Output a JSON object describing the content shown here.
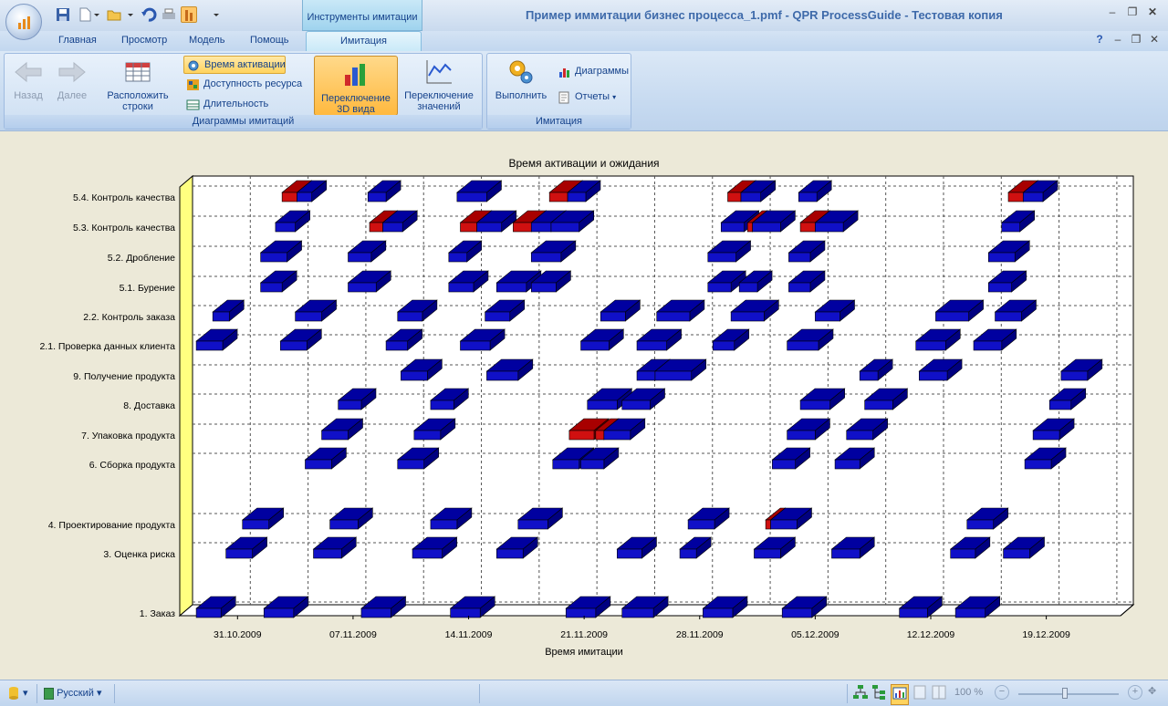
{
  "window": {
    "title": "Пример иммитации бизнес процесса_1.pmf - QPR ProcessGuide - Тестовая копия",
    "context_tab_header": "Инструменты имитации"
  },
  "tabs": [
    "Главная",
    "Просмотр",
    "Модель",
    "Помощь"
  ],
  "active_tab": "Имитация",
  "ribbon": {
    "back_label": "Назад",
    "forward_label": "Далее",
    "arrange_rows_label_1": "Расположить",
    "arrange_rows_label_2": "строки",
    "activation_time_label": "Время активации",
    "resource_availability_label": "Доступность ресурса",
    "duration_label": "Длительность",
    "switch_3d_label_1": "Переключение",
    "switch_3d_label_2": "3D вида",
    "switch_values_label_1": "Переключение",
    "switch_values_label_2": "значений",
    "group_charts_label": "Диаграммы имитаций",
    "run_label": "Выполнить",
    "diagrams_label": "Диаграммы",
    "reports_label": "Отчеты",
    "group_simulation_label": "Имитация"
  },
  "status": {
    "language": "Русский",
    "zoom": "100 %"
  },
  "colors": {
    "bar_blue": "#1010c8",
    "bar_red": "#d01010",
    "wall_yellow": "#ffff80"
  },
  "chart_data": {
    "type": "gantt",
    "title": "Время активации и ожидания",
    "xlabel": "Время имитации",
    "x_ticks": [
      "31.10.2009",
      "07.11.2009",
      "14.11.2009",
      "21.11.2009",
      "28.11.2009",
      "05.12.2009",
      "12.12.2009",
      "19.12.2009"
    ],
    "grid": true,
    "three_d": true,
    "rows": [
      {
        "label": "5.4. Контроль качества",
        "bars": [
          [
            6.2,
            7.1,
            "red"
          ],
          [
            7.1,
            8.0,
            "blue"
          ],
          [
            11.4,
            12.5,
            "blue"
          ],
          [
            16.8,
            18.6,
            "blue"
          ],
          [
            22.4,
            23.5,
            "red"
          ],
          [
            23.5,
            24.6,
            "blue"
          ],
          [
            33.2,
            34.0,
            "red"
          ],
          [
            34.0,
            35.2,
            "blue"
          ],
          [
            37.5,
            38.6,
            "blue"
          ],
          [
            50.2,
            51.1,
            "red"
          ],
          [
            51.1,
            52.3,
            "blue"
          ]
        ]
      },
      {
        "label": "5.3. Контроль качества",
        "bars": [
          [
            5.8,
            7.0,
            "blue"
          ],
          [
            11.5,
            12.3,
            "red"
          ],
          [
            12.3,
            13.5,
            "blue"
          ],
          [
            17.0,
            18.0,
            "red"
          ],
          [
            18.0,
            19.5,
            "blue"
          ],
          [
            20.2,
            21.3,
            "red"
          ],
          [
            21.3,
            22.5,
            "blue"
          ],
          [
            22.5,
            24.2,
            "blue"
          ],
          [
            32.8,
            34.2,
            "blue"
          ],
          [
            34.4,
            34.7,
            "red"
          ],
          [
            34.7,
            36.4,
            "blue"
          ],
          [
            37.6,
            38.5,
            "red"
          ],
          [
            38.5,
            40.2,
            "blue"
          ],
          [
            49.8,
            50.9,
            "blue"
          ]
        ]
      },
      {
        "label": "5.2. Дробление",
        "bars": [
          [
            4.9,
            6.5,
            "blue"
          ],
          [
            10.2,
            11.6,
            "blue"
          ],
          [
            16.3,
            17.4,
            "blue"
          ],
          [
            21.3,
            23.1,
            "blue"
          ],
          [
            32.0,
            33.7,
            "blue"
          ],
          [
            36.9,
            38.2,
            "blue"
          ],
          [
            49.0,
            50.6,
            "blue"
          ]
        ]
      },
      {
        "label": "5.1. Бурение",
        "bars": [
          [
            4.9,
            6.2,
            "blue"
          ],
          [
            10.2,
            11.9,
            "blue"
          ],
          [
            16.3,
            17.8,
            "blue"
          ],
          [
            19.2,
            21.0,
            "blue"
          ],
          [
            21.3,
            22.8,
            "blue"
          ],
          [
            32.0,
            33.4,
            "blue"
          ],
          [
            33.9,
            35.0,
            "blue"
          ],
          [
            36.9,
            38.2,
            "blue"
          ],
          [
            49.0,
            50.4,
            "blue"
          ]
        ]
      },
      {
        "label": "2.2. Контроль заказа",
        "bars": [
          [
            2.0,
            3.0,
            "blue"
          ],
          [
            7.0,
            8.6,
            "blue"
          ],
          [
            13.2,
            14.7,
            "blue"
          ],
          [
            18.5,
            20.0,
            "blue"
          ],
          [
            25.5,
            27.0,
            "blue"
          ],
          [
            28.9,
            30.9,
            "blue"
          ],
          [
            33.4,
            35.4,
            "blue"
          ],
          [
            38.5,
            40.0,
            "blue"
          ],
          [
            45.8,
            47.8,
            "blue"
          ],
          [
            49.4,
            51.0,
            "blue"
          ]
        ]
      },
      {
        "label": "2.1. Проверка данных клиента",
        "bars": [
          [
            1.0,
            2.6,
            "blue"
          ],
          [
            6.1,
            7.7,
            "blue"
          ],
          [
            12.5,
            13.8,
            "blue"
          ],
          [
            17.0,
            18.8,
            "blue"
          ],
          [
            24.3,
            26.0,
            "blue"
          ],
          [
            27.7,
            29.5,
            "blue"
          ],
          [
            32.3,
            33.6,
            "blue"
          ],
          [
            36.8,
            38.7,
            "blue"
          ],
          [
            44.6,
            46.4,
            "blue"
          ],
          [
            48.1,
            49.8,
            "blue"
          ]
        ]
      },
      {
        "label": "9. Получение продукта",
        "bars": [
          [
            13.4,
            15.0,
            "blue"
          ],
          [
            18.6,
            20.5,
            "blue"
          ],
          [
            27.7,
            28.8,
            "blue"
          ],
          [
            28.8,
            31.0,
            "blue"
          ],
          [
            41.2,
            42.3,
            "blue"
          ],
          [
            44.8,
            46.5,
            "blue"
          ],
          [
            53.4,
            55.0,
            "blue"
          ]
        ]
      },
      {
        "label": "8. Доставка",
        "bars": [
          [
            9.6,
            11.0,
            "blue"
          ],
          [
            15.2,
            16.6,
            "blue"
          ],
          [
            24.7,
            26.5,
            "blue"
          ],
          [
            26.8,
            28.5,
            "blue"
          ],
          [
            37.6,
            39.4,
            "blue"
          ],
          [
            41.5,
            43.2,
            "blue"
          ],
          [
            52.7,
            54.0,
            "blue"
          ]
        ]
      },
      {
        "label": "7. Упаковка продукта",
        "bars": [
          [
            8.6,
            10.2,
            "blue"
          ],
          [
            14.2,
            15.8,
            "blue"
          ],
          [
            23.6,
            25.1,
            "red"
          ],
          [
            25.2,
            25.7,
            "red"
          ],
          [
            25.7,
            27.3,
            "blue"
          ],
          [
            36.8,
            38.5,
            "blue"
          ],
          [
            40.4,
            42.0,
            "blue"
          ],
          [
            51.7,
            53.3,
            "blue"
          ]
        ]
      },
      {
        "label": "6. Сборка продукта",
        "bars": [
          [
            7.6,
            9.2,
            "blue"
          ],
          [
            13.2,
            14.8,
            "blue"
          ],
          [
            22.6,
            24.2,
            "blue"
          ],
          [
            24.3,
            25.7,
            "blue"
          ],
          [
            35.9,
            37.3,
            "blue"
          ],
          [
            39.7,
            41.2,
            "blue"
          ],
          [
            51.2,
            52.8,
            "blue"
          ]
        ]
      },
      {
        "label": "4. Проектирование продукта",
        "bars": [
          [
            3.8,
            5.4,
            "blue"
          ],
          [
            9.1,
            10.8,
            "blue"
          ],
          [
            15.2,
            16.8,
            "blue"
          ],
          [
            20.5,
            22.3,
            "blue"
          ],
          [
            30.8,
            32.4,
            "blue"
          ],
          [
            35.5,
            35.8,
            "red"
          ],
          [
            35.8,
            37.4,
            "blue"
          ],
          [
            47.7,
            49.3,
            "blue"
          ]
        ]
      },
      {
        "label": "3. Оценка риска",
        "bars": [
          [
            2.8,
            4.4,
            "blue"
          ],
          [
            8.1,
            9.8,
            "blue"
          ],
          [
            14.1,
            15.9,
            "blue"
          ],
          [
            19.2,
            20.8,
            "blue"
          ],
          [
            26.5,
            28.0,
            "blue"
          ],
          [
            30.3,
            31.3,
            "blue"
          ],
          [
            34.8,
            36.4,
            "blue"
          ],
          [
            39.5,
            41.2,
            "blue"
          ],
          [
            46.7,
            48.2,
            "blue"
          ],
          [
            49.9,
            51.5,
            "blue"
          ]
        ]
      },
      {
        "label": "1. Заказ",
        "bars": [
          [
            1.0,
            2.5,
            "blue"
          ],
          [
            5.1,
            6.9,
            "blue"
          ],
          [
            11.0,
            12.8,
            "blue"
          ],
          [
            16.4,
            18.2,
            "blue"
          ],
          [
            23.4,
            25.2,
            "blue"
          ],
          [
            26.8,
            28.7,
            "blue"
          ],
          [
            31.7,
            33.5,
            "blue"
          ],
          [
            36.5,
            38.3,
            "blue"
          ],
          [
            43.6,
            45.3,
            "blue"
          ],
          [
            47.0,
            48.8,
            "blue"
          ]
        ]
      }
    ]
  }
}
